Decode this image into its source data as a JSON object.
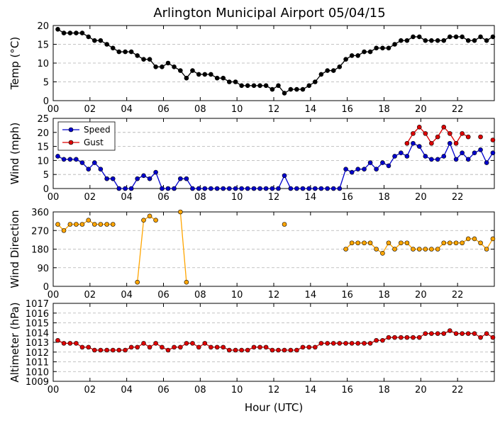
{
  "chart_data": {
    "title": "Arlington Municipal Airport 05/04/15",
    "xlabel": "Hour (UTC)",
    "x_ticks": [
      "00",
      "02",
      "04",
      "06",
      "08",
      "10",
      "12",
      "14",
      "16",
      "18",
      "20",
      "22"
    ],
    "x": [
      0.25,
      0.58,
      0.92,
      1.25,
      1.58,
      1.92,
      2.25,
      2.58,
      2.92,
      3.25,
      3.58,
      3.92,
      4.25,
      4.58,
      4.92,
      5.25,
      5.58,
      5.92,
      6.25,
      6.58,
      6.92,
      7.25,
      7.58,
      7.92,
      8.25,
      8.58,
      8.92,
      9.25,
      9.58,
      9.92,
      10.25,
      10.58,
      10.92,
      11.25,
      11.58,
      11.92,
      12.25,
      12.58,
      12.92,
      13.25,
      13.58,
      13.92,
      14.25,
      14.58,
      14.92,
      15.25,
      15.58,
      15.92,
      16.25,
      16.58,
      16.92,
      17.25,
      17.58,
      17.92,
      18.25,
      18.58,
      18.92,
      19.25,
      19.58,
      19.92,
      20.25,
      20.58,
      20.92,
      21.25,
      21.58,
      21.92,
      22.25,
      22.58,
      22.92,
      23.25,
      23.58,
      23.92
    ],
    "panels": [
      {
        "type": "line",
        "ylabel": "Temp (°C)",
        "ylim": [
          0,
          20
        ],
        "y_ticks": [
          0,
          5,
          10,
          15,
          20
        ],
        "series": [
          {
            "name": "Temp",
            "color": "#000000",
            "gaps": false,
            "values": [
              19,
              18,
              18,
              18,
              18,
              17,
              16,
              16,
              15,
              14,
              13,
              13,
              13,
              12,
              11,
              11,
              9,
              9,
              10,
              9,
              8,
              6,
              8,
              7,
              7,
              7,
              6,
              6,
              5,
              5,
              4,
              4,
              4,
              4,
              4,
              3,
              4,
              2,
              3,
              3,
              3,
              4,
              5,
              7,
              8,
              8,
              9,
              11,
              12,
              12,
              13,
              13,
              14,
              14,
              14,
              15,
              16,
              16,
              17,
              17,
              16,
              16,
              16,
              16,
              17,
              17,
              17,
              16,
              16,
              17,
              16,
              17
            ]
          }
        ]
      },
      {
        "type": "line",
        "ylabel": "Wind (mph)",
        "ylim": [
          0,
          25
        ],
        "y_ticks": [
          0,
          5,
          10,
          15,
          20,
          25
        ],
        "legend": {
          "position": "upper-left",
          "entries": [
            "Speed",
            "Gust"
          ]
        },
        "series": [
          {
            "name": "Speed",
            "color": "#0000cc",
            "gaps": false,
            "values": [
              11.5,
              10.4,
              10.4,
              10.4,
              9.2,
              6.9,
              9.2,
              6.9,
              3.5,
              3.5,
              0,
              0,
              0,
              3.5,
              4.6,
              3.5,
              5.8,
              0,
              0,
              0,
              3.5,
              3.5,
              0,
              0,
              0,
              0,
              0,
              0,
              0,
              0,
              0,
              0,
              0,
              0,
              0,
              0,
              0,
              4.6,
              0,
              0,
              0,
              0,
              0,
              0,
              0,
              0,
              0,
              6.9,
              5.8,
              6.9,
              6.9,
              9.2,
              6.9,
              9.2,
              8.1,
              11.5,
              12.7,
              11.5,
              16.1,
              15,
              11.5,
              10.4,
              10.4,
              11.5,
              16.1,
              10.4,
              12.7,
              10.4,
              12.7,
              13.8,
              9.2,
              12.7
            ]
          },
          {
            "name": "Gust",
            "color": "#dd0000",
            "gaps": true,
            "values": [
              null,
              null,
              null,
              null,
              null,
              null,
              null,
              null,
              null,
              null,
              null,
              null,
              null,
              null,
              null,
              null,
              null,
              null,
              null,
              null,
              null,
              null,
              null,
              null,
              null,
              null,
              null,
              null,
              null,
              null,
              null,
              null,
              null,
              null,
              null,
              null,
              null,
              null,
              null,
              null,
              null,
              null,
              null,
              null,
              null,
              null,
              null,
              null,
              null,
              null,
              null,
              null,
              null,
              null,
              null,
              null,
              null,
              16.1,
              19.6,
              21.9,
              19.6,
              16.1,
              18.4,
              21.9,
              19.6,
              16.1,
              19.6,
              18.4,
              null,
              18.4,
              null,
              17.3
            ]
          }
        ]
      },
      {
        "type": "scatter",
        "ylabel": "Wind Direction",
        "ylim": [
          0,
          360
        ],
        "y_ticks": [
          0,
          90,
          180,
          270,
          360
        ],
        "series": [
          {
            "name": "Direction",
            "color": "#ffa500",
            "gaps": true,
            "values": [
              300,
              270,
              300,
              300,
              300,
              320,
              300,
              300,
              300,
              300,
              null,
              null,
              null,
              20,
              320,
              340,
              320,
              null,
              null,
              null,
              360,
              20,
              null,
              null,
              null,
              null,
              null,
              null,
              null,
              null,
              null,
              null,
              null,
              null,
              null,
              null,
              null,
              300,
              null,
              null,
              null,
              null,
              null,
              null,
              null,
              null,
              null,
              180,
              210,
              210,
              210,
              210,
              180,
              160,
              210,
              180,
              210,
              210,
              180,
              180,
              180,
              180,
              180,
              210,
              210,
              210,
              210,
              230,
              230,
              210,
              180,
              230
            ]
          }
        ]
      },
      {
        "type": "line",
        "ylabel": "Altimeter (hPa)",
        "ylim": [
          1009,
          1017
        ],
        "y_ticks": [
          1009,
          1010,
          1011,
          1012,
          1013,
          1014,
          1015,
          1016,
          1017
        ],
        "series": [
          {
            "name": "Altimeter",
            "color": "#dd0000",
            "gaps": false,
            "values": [
              1013.2,
              1012.9,
              1012.9,
              1012.9,
              1012.5,
              1012.5,
              1012.2,
              1012.2,
              1012.2,
              1012.2,
              1012.2,
              1012.2,
              1012.5,
              1012.5,
              1012.9,
              1012.5,
              1012.9,
              1012.5,
              1012.2,
              1012.5,
              1012.5,
              1012.9,
              1012.9,
              1012.5,
              1012.9,
              1012.5,
              1012.5,
              1012.5,
              1012.2,
              1012.2,
              1012.2,
              1012.2,
              1012.5,
              1012.5,
              1012.5,
              1012.2,
              1012.2,
              1012.2,
              1012.2,
              1012.2,
              1012.5,
              1012.5,
              1012.5,
              1012.9,
              1012.9,
              1012.9,
              1012.9,
              1012.9,
              1012.9,
              1012.9,
              1012.9,
              1012.9,
              1013.2,
              1013.2,
              1013.5,
              1013.5,
              1013.5,
              1013.5,
              1013.5,
              1013.5,
              1013.9,
              1013.9,
              1013.9,
              1013.9,
              1014.2,
              1013.9,
              1013.9,
              1013.9,
              1013.9,
              1013.5,
              1013.9,
              1013.5
            ]
          }
        ]
      }
    ]
  }
}
